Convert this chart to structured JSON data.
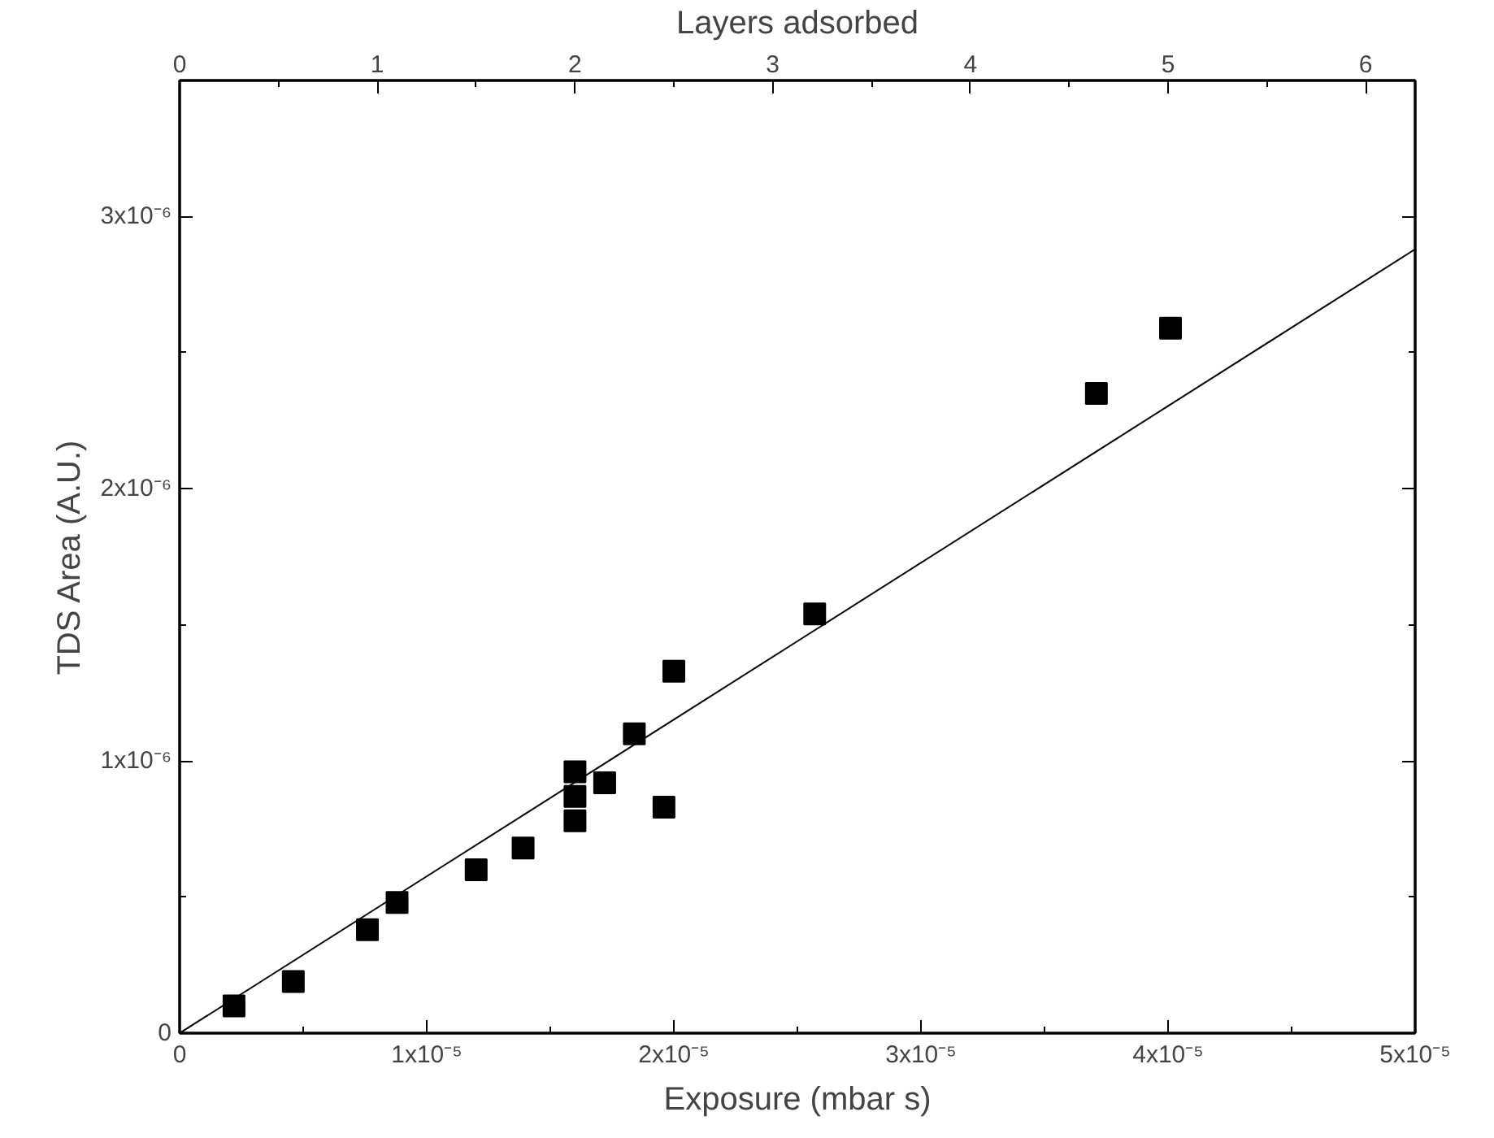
{
  "chart_data": {
    "type": "scatter",
    "xlabel": "Exposure (mbar s)",
    "ylabel": "TDS Area (A.U.)",
    "x2label": "Layers adsorbed",
    "grid": false,
    "xlim": [
      0,
      5e-05
    ],
    "ylim": [
      0,
      3.5e-06
    ],
    "x2lim": [
      0,
      6.25
    ],
    "xticks": [
      0,
      {
        "value": 5e-06,
        "label": null
      },
      {
        "value": 1e-05,
        "label": "1x10⁻⁵"
      },
      {
        "value": 1.5e-05,
        "label": null
      },
      {
        "value": 2e-05,
        "label": "2x10⁻⁵"
      },
      {
        "value": 2.5e-05,
        "label": null
      },
      {
        "value": 3e-05,
        "label": "3x10⁻⁵"
      },
      {
        "value": 3.5e-05,
        "label": null
      },
      {
        "value": 4e-05,
        "label": "4x10⁻⁵"
      },
      {
        "value": 4.5e-05,
        "label": null
      },
      {
        "value": 5e-05,
        "label": "5x10⁻⁵"
      }
    ],
    "yticks": [
      0,
      {
        "value": 5e-07,
        "label": null
      },
      {
        "value": 1e-06,
        "label": "1x10⁻⁶"
      },
      {
        "value": 1.5e-06,
        "label": null
      },
      {
        "value": 2e-06,
        "label": "2x10⁻⁶"
      },
      {
        "value": 2.5e-06,
        "label": null
      },
      {
        "value": 3e-06,
        "label": "3x10⁻⁶"
      }
    ],
    "x2ticks": [
      0,
      {
        "value": 0.5,
        "label": null
      },
      1,
      {
        "value": 1.5,
        "label": null
      },
      2,
      {
        "value": 2.5,
        "label": null
      },
      3,
      {
        "value": 3.5,
        "label": null
      },
      4,
      {
        "value": 4.5,
        "label": null
      },
      5,
      {
        "value": 5.5,
        "label": null
      },
      6
    ],
    "series": [
      {
        "marker": "square",
        "color": "#000000",
        "x": [
          2.2e-06,
          4.6e-06,
          7.6e-06,
          8.8e-06,
          1.2e-05,
          1.39e-05,
          1.6e-05,
          1.6e-05,
          1.6e-05,
          1.72e-05,
          1.84e-05,
          1.96e-05,
          2e-05,
          2.57e-05,
          3.71e-05,
          4.01e-05
        ],
        "values": [
          1e-07,
          1.9e-07,
          3.8e-07,
          4.8e-07,
          6e-07,
          6.8e-07,
          9.6e-07,
          8.7e-07,
          7.8e-07,
          9.2e-07,
          1.1e-06,
          8.3e-07,
          1.33e-06,
          1.54e-06,
          2.35e-06,
          2.59e-06
        ]
      },
      {
        "type": "line",
        "color": "#000000",
        "line_style": "solid",
        "x": [
          0,
          5e-05
        ],
        "values": [
          0,
          2.88e-06
        ]
      }
    ]
  }
}
